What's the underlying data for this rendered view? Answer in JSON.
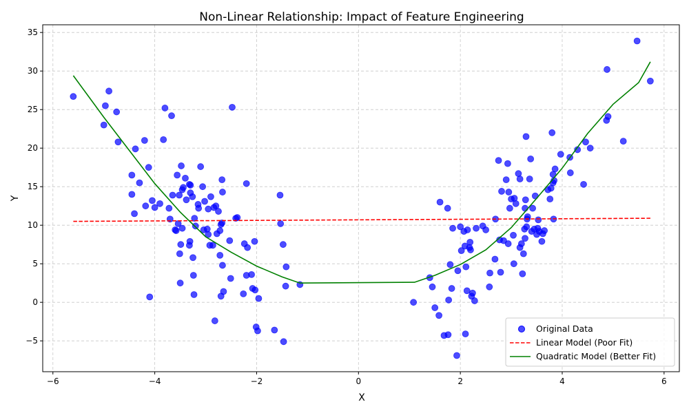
{
  "chart_data": {
    "type": "scatter",
    "title": "Non-Linear Relationship: Impact of Feature Engineering",
    "xlabel": "X",
    "ylabel": "Y",
    "xlim": [
      -6.2,
      6.3
    ],
    "ylim": [
      -9.0,
      36.0
    ],
    "xticks": [
      -6,
      -4,
      -2,
      0,
      2,
      4,
      6
    ],
    "yticks": [
      -5,
      0,
      5,
      10,
      15,
      20,
      25,
      30,
      35
    ],
    "grid": true,
    "legend_position": "bottom-right",
    "series": [
      {
        "name": "Original Data",
        "kind": "scatter",
        "color": "#0000ff",
        "points": [
          [
            -5.6,
            26.7
          ],
          [
            -5.0,
            23.0
          ],
          [
            -4.97,
            25.5
          ],
          [
            -4.9,
            27.4
          ],
          [
            -4.75,
            24.7
          ],
          [
            -4.72,
            20.8
          ],
          [
            -4.45,
            14.0
          ],
          [
            -4.45,
            16.5
          ],
          [
            -4.4,
            11.5
          ],
          [
            -4.38,
            19.9
          ],
          [
            -4.3,
            15.5
          ],
          [
            -4.2,
            21.0
          ],
          [
            -4.18,
            12.5
          ],
          [
            -4.12,
            17.5
          ],
          [
            -4.1,
            0.7
          ],
          [
            -4.05,
            13.2
          ],
          [
            -4.0,
            12.3
          ],
          [
            -3.9,
            12.8
          ],
          [
            -3.83,
            21.1
          ],
          [
            -3.8,
            25.2
          ],
          [
            -3.72,
            12.2
          ],
          [
            -3.7,
            10.8
          ],
          [
            -3.67,
            24.2
          ],
          [
            -3.65,
            13.9
          ],
          [
            -3.6,
            9.4
          ],
          [
            -3.58,
            9.3
          ],
          [
            -3.56,
            16.5
          ],
          [
            -3.54,
            10.2
          ],
          [
            -3.52,
            13.9
          ],
          [
            -3.51,
            6.3
          ],
          [
            -3.5,
            2.5
          ],
          [
            -3.49,
            7.5
          ],
          [
            -3.48,
            17.7
          ],
          [
            -3.46,
            9.6
          ],
          [
            -3.46,
            14.6
          ],
          [
            -3.44,
            14.9
          ],
          [
            -3.4,
            16.1
          ],
          [
            -3.38,
            13.3
          ],
          [
            -3.32,
            15.3
          ],
          [
            -3.32,
            7.4
          ],
          [
            -3.31,
            7.9
          ],
          [
            -3.3,
            15.2
          ],
          [
            -3.3,
            14.2
          ],
          [
            -3.26,
            13.7
          ],
          [
            -3.25,
            5.8
          ],
          [
            -3.24,
            3.5
          ],
          [
            -3.23,
            1.0
          ],
          [
            -3.22,
            10.9
          ],
          [
            -3.2,
            9.9
          ],
          [
            -3.15,
            12.7
          ],
          [
            -3.14,
            12.2
          ],
          [
            -3.1,
            17.6
          ],
          [
            -3.06,
            15.0
          ],
          [
            -3.04,
            9.4
          ],
          [
            -3.02,
            13.1
          ],
          [
            -2.97,
            9.5
          ],
          [
            -2.95,
            12.1
          ],
          [
            -2.95,
            8.8
          ],
          [
            -2.92,
            7.4
          ],
          [
            -2.9,
            13.7
          ],
          [
            -2.86,
            7.4
          ],
          [
            -2.84,
            12.3
          ],
          [
            -2.82,
            -2.4
          ],
          [
            -2.8,
            12.5
          ],
          [
            -2.78,
            8.9
          ],
          [
            -2.75,
            11.8
          ],
          [
            -2.72,
            6.1
          ],
          [
            -2.72,
            9.3
          ],
          [
            -2.7,
            10.1
          ],
          [
            -2.7,
            0.8
          ],
          [
            -2.68,
            15.9
          ],
          [
            -2.68,
            10.3
          ],
          [
            -2.67,
            14.3
          ],
          [
            -2.67,
            4.8
          ],
          [
            -2.65,
            1.4
          ],
          [
            -2.53,
            8.0
          ],
          [
            -2.51,
            3.1
          ],
          [
            -2.48,
            25.3
          ],
          [
            -2.41,
            10.9
          ],
          [
            -2.38,
            11.0
          ],
          [
            -2.26,
            1.1
          ],
          [
            -2.24,
            7.6
          ],
          [
            -2.2,
            3.5
          ],
          [
            -2.2,
            15.4
          ],
          [
            -2.18,
            7.1
          ],
          [
            -2.1,
            3.6
          ],
          [
            -2.08,
            1.8
          ],
          [
            -2.04,
            7.9
          ],
          [
            -2.03,
            1.6
          ],
          [
            -2.01,
            -3.2
          ],
          [
            -1.98,
            -3.7
          ],
          [
            -1.96,
            0.5
          ],
          [
            -1.65,
            -3.6
          ],
          [
            -1.54,
            13.9
          ],
          [
            -1.53,
            10.2
          ],
          [
            -1.48,
            7.5
          ],
          [
            -1.47,
            -5.1
          ],
          [
            -1.43,
            2.1
          ],
          [
            -1.42,
            4.6
          ],
          [
            -1.15,
            2.3
          ],
          [
            1.08,
            0.0
          ],
          [
            1.4,
            3.2
          ],
          [
            1.45,
            2.0
          ],
          [
            1.5,
            -0.7
          ],
          [
            1.58,
            -1.7
          ],
          [
            1.6,
            13.0
          ],
          [
            1.68,
            -4.3
          ],
          [
            1.75,
            12.2
          ],
          [
            1.76,
            -4.2
          ],
          [
            1.77,
            0.3
          ],
          [
            1.8,
            4.9
          ],
          [
            1.83,
            1.8
          ],
          [
            1.85,
            9.6
          ],
          [
            1.93,
            -6.9
          ],
          [
            1.95,
            4.1
          ],
          [
            2.0,
            9.8
          ],
          [
            2.02,
            6.7
          ],
          [
            2.07,
            9.2
          ],
          [
            2.09,
            7.3
          ],
          [
            2.1,
            -4.1
          ],
          [
            2.11,
            4.6
          ],
          [
            2.13,
            1.5
          ],
          [
            2.14,
            9.4
          ],
          [
            2.18,
            7.1
          ],
          [
            2.19,
            7.8
          ],
          [
            2.2,
            6.8
          ],
          [
            2.22,
            0.8
          ],
          [
            2.24,
            1.2
          ],
          [
            2.28,
            0.2
          ],
          [
            2.31,
            9.6
          ],
          [
            2.44,
            9.9
          ],
          [
            2.5,
            9.4
          ],
          [
            2.57,
            2.0
          ],
          [
            2.58,
            3.8
          ],
          [
            2.68,
            5.6
          ],
          [
            2.69,
            10.8
          ],
          [
            2.75,
            18.4
          ],
          [
            2.77,
            8.1
          ],
          [
            2.79,
            3.9
          ],
          [
            2.81,
            14.4
          ],
          [
            2.85,
            8.0
          ],
          [
            2.9,
            15.9
          ],
          [
            2.93,
            18.0
          ],
          [
            2.94,
            7.6
          ],
          [
            2.95,
            14.3
          ],
          [
            2.97,
            12.2
          ],
          [
            3.0,
            13.4
          ],
          [
            3.04,
            8.7
          ],
          [
            3.05,
            5.0
          ],
          [
            3.06,
            13.5
          ],
          [
            3.09,
            12.8
          ],
          [
            3.14,
            16.7
          ],
          [
            3.17,
            16.0
          ],
          [
            3.17,
            7.1
          ],
          [
            3.2,
            7.6
          ],
          [
            3.22,
            3.7
          ],
          [
            3.24,
            6.3
          ],
          [
            3.26,
            9.5
          ],
          [
            3.27,
            12.2
          ],
          [
            3.27,
            8.3
          ],
          [
            3.28,
            13.3
          ],
          [
            3.29,
            21.5
          ],
          [
            3.3,
            9.8
          ],
          [
            3.31,
            10.8
          ],
          [
            3.32,
            11.1
          ],
          [
            3.36,
            16.0
          ],
          [
            3.38,
            18.6
          ],
          [
            3.4,
            9.2
          ],
          [
            3.42,
            12.2
          ],
          [
            3.45,
            9.5
          ],
          [
            3.47,
            13.8
          ],
          [
            3.5,
            8.8
          ],
          [
            3.52,
            9.6
          ],
          [
            3.53,
            10.7
          ],
          [
            3.55,
            9.2
          ],
          [
            3.6,
            7.9
          ],
          [
            3.62,
            8.9
          ],
          [
            3.65,
            9.3
          ],
          [
            3.72,
            14.6
          ],
          [
            3.76,
            13.4
          ],
          [
            3.78,
            14.8
          ],
          [
            3.8,
            22.0
          ],
          [
            3.82,
            15.5
          ],
          [
            3.82,
            16.6
          ],
          [
            3.83,
            10.8
          ],
          [
            3.84,
            15.8
          ],
          [
            3.86,
            17.3
          ],
          [
            3.97,
            19.2
          ],
          [
            4.15,
            18.8
          ],
          [
            4.16,
            16.8
          ],
          [
            4.3,
            19.8
          ],
          [
            4.42,
            15.3
          ],
          [
            4.46,
            20.8
          ],
          [
            4.55,
            20.0
          ],
          [
            4.87,
            23.6
          ],
          [
            4.88,
            30.2
          ],
          [
            4.9,
            24.1
          ],
          [
            5.2,
            20.9
          ],
          [
            5.47,
            33.9
          ],
          [
            5.73,
            28.7
          ]
        ]
      },
      {
        "name": "Linear Model (Poor Fit)",
        "kind": "line",
        "style": "dashed",
        "color": "#ff0000",
        "points": [
          [
            -5.6,
            10.5
          ],
          [
            5.73,
            10.9
          ]
        ]
      },
      {
        "name": "Quadratic Model (Better Fit)",
        "kind": "line",
        "style": "solid",
        "color": "#008000",
        "points": [
          [
            -5.6,
            29.4
          ],
          [
            -5.0,
            24.0
          ],
          [
            -4.5,
            19.7
          ],
          [
            -4.0,
            15.4
          ],
          [
            -3.5,
            11.7
          ],
          [
            -3.0,
            8.5
          ],
          [
            -2.5,
            6.5
          ],
          [
            -2.0,
            4.7
          ],
          [
            -1.5,
            3.3
          ],
          [
            -1.15,
            2.5
          ],
          [
            1.1,
            2.6
          ],
          [
            1.5,
            3.5
          ],
          [
            2.0,
            4.9
          ],
          [
            2.5,
            6.8
          ],
          [
            3.0,
            9.7
          ],
          [
            3.5,
            13.5
          ],
          [
            4.0,
            17.4
          ],
          [
            4.5,
            21.9
          ],
          [
            5.0,
            25.7
          ],
          [
            5.5,
            28.5
          ],
          [
            5.73,
            31.2
          ]
        ]
      }
    ]
  }
}
